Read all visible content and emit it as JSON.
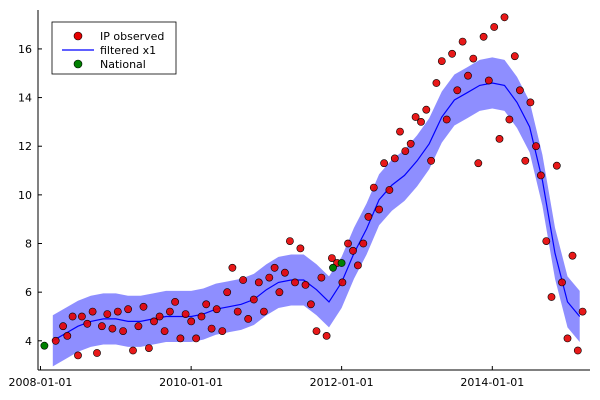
{
  "chart_data": {
    "type": "scatter",
    "title": "",
    "xlabel": "",
    "ylabel": "",
    "xlim": [
      "2007-12-20",
      "2015-04-20"
    ],
    "ylim": [
      2.8,
      17.6
    ],
    "grid": false,
    "legend": {
      "placement": "top-left",
      "entries": [
        {
          "label": "IP observed",
          "marker": "circle",
          "color": "#e60000"
        },
        {
          "label": "filtered x1",
          "marker": "line",
          "color": "#0000ff"
        },
        {
          "label": "National",
          "marker": "circle",
          "color": "#008000"
        }
      ]
    },
    "x_ticks": [
      {
        "value": "2008-01-01",
        "label": "2008-01-01"
      },
      {
        "value": "2010-01-01",
        "label": "2010-01-01"
      },
      {
        "value": "2012-01-01",
        "label": "2012-01-01"
      },
      {
        "value": "2014-01-01",
        "label": "2014-01-01"
      }
    ],
    "y_ticks": [
      4,
      6,
      8,
      10,
      12,
      14,
      16
    ],
    "series": [
      {
        "name": "filtered x1",
        "type": "line",
        "color": "#0000ff",
        "band_color": "#7a7aff",
        "band_half_width": 1.05,
        "x": [
          "2008-03-01",
          "2008-05-01",
          "2008-07-01",
          "2008-09-01",
          "2008-11-01",
          "2009-01-01",
          "2009-03-01",
          "2009-05-01",
          "2009-07-01",
          "2009-09-01",
          "2009-11-01",
          "2010-01-01",
          "2010-03-01",
          "2010-05-01",
          "2010-07-01",
          "2010-09-01",
          "2010-11-01",
          "2011-01-01",
          "2011-03-01",
          "2011-05-01",
          "2011-07-01",
          "2011-09-01",
          "2011-11-01",
          "2012-01-01",
          "2012-03-01",
          "2012-05-01",
          "2012-07-01",
          "2012-09-01",
          "2012-11-01",
          "2013-01-01",
          "2013-03-01",
          "2013-05-01",
          "2013-07-01",
          "2013-09-01",
          "2013-11-01",
          "2014-01-01",
          "2014-03-01",
          "2014-05-01",
          "2014-07-01",
          "2014-09-01",
          "2014-11-01",
          "2015-01-01",
          "2015-03-01"
        ],
        "values": [
          4.0,
          4.3,
          4.6,
          4.8,
          4.9,
          4.9,
          4.8,
          4.8,
          4.9,
          5.0,
          5.0,
          5.0,
          5.1,
          5.3,
          5.4,
          5.5,
          5.7,
          6.1,
          6.4,
          6.5,
          6.5,
          6.1,
          5.6,
          6.4,
          7.6,
          8.6,
          9.8,
          10.4,
          10.8,
          11.4,
          12.1,
          13.2,
          13.9,
          14.2,
          14.5,
          14.6,
          14.5,
          13.8,
          12.8,
          10.6,
          7.6,
          5.6,
          5.0
        ]
      },
      {
        "name": "IP observed",
        "type": "scatter",
        "color": "#e60000",
        "x": [
          "2008-03-15",
          "2008-04-20",
          "2008-05-10",
          "2008-06-05",
          "2008-07-01",
          "2008-07-20",
          "2008-08-15",
          "2008-09-10",
          "2008-10-01",
          "2008-10-25",
          "2008-11-20",
          "2008-12-15",
          "2009-01-10",
          "2009-02-05",
          "2009-03-01",
          "2009-03-25",
          "2009-04-20",
          "2009-05-15",
          "2009-06-10",
          "2009-07-05",
          "2009-08-01",
          "2009-08-25",
          "2009-09-20",
          "2009-10-15",
          "2009-11-10",
          "2009-12-05",
          "2010-01-01",
          "2010-01-25",
          "2010-02-20",
          "2010-03-15",
          "2010-04-10",
          "2010-05-05",
          "2010-06-01",
          "2010-06-25",
          "2010-07-20",
          "2010-08-15",
          "2010-09-10",
          "2010-10-05",
          "2010-11-01",
          "2010-11-25",
          "2010-12-20",
          "2011-01-15",
          "2011-02-10",
          "2011-03-05",
          "2011-04-01",
          "2011-04-25",
          "2011-05-20",
          "2011-06-15",
          "2011-07-10",
          "2011-08-05",
          "2011-09-01",
          "2011-09-25",
          "2011-10-20",
          "2011-11-15",
          "2011-12-10",
          "2012-01-05",
          "2012-02-01",
          "2012-02-25",
          "2012-03-20",
          "2012-04-15",
          "2012-05-10",
          "2012-06-05",
          "2012-07-01",
          "2012-07-25",
          "2012-08-20",
          "2012-09-15",
          "2012-10-10",
          "2012-11-05",
          "2012-12-01",
          "2012-12-25",
          "2013-01-20",
          "2013-02-15",
          "2013-03-10",
          "2013-04-05",
          "2013-05-01",
          "2013-05-25",
          "2013-06-20",
          "2013-07-15",
          "2013-08-10",
          "2013-09-05",
          "2013-10-01",
          "2013-10-25",
          "2013-11-20",
          "2013-12-15",
          "2014-01-10",
          "2014-02-05",
          "2014-03-01",
          "2014-03-25",
          "2014-04-20",
          "2014-05-15",
          "2014-06-10",
          "2014-07-05",
          "2014-08-01",
          "2014-08-25",
          "2014-09-20",
          "2014-10-15",
          "2014-11-10",
          "2014-12-05",
          "2015-01-01",
          "2015-01-25",
          "2015-02-20",
          "2015-03-15"
        ],
        "values": [
          4.0,
          4.6,
          4.2,
          5.0,
          3.4,
          5.0,
          4.7,
          5.2,
          3.5,
          4.6,
          5.1,
          4.5,
          5.2,
          4.4,
          5.3,
          3.6,
          4.6,
          5.4,
          3.7,
          4.8,
          5.0,
          4.4,
          5.2,
          5.6,
          4.1,
          5.1,
          4.8,
          4.1,
          5.0,
          5.5,
          4.5,
          5.3,
          4.4,
          6.0,
          7.0,
          5.2,
          6.5,
          4.9,
          5.7,
          6.4,
          5.2,
          6.6,
          7.0,
          6.0,
          6.8,
          8.1,
          6.4,
          7.8,
          6.3,
          5.5,
          4.4,
          6.6,
          4.2,
          7.4,
          7.2,
          6.4,
          8.0,
          7.7,
          7.1,
          8.0,
          9.1,
          10.3,
          9.4,
          11.3,
          10.2,
          11.5,
          12.6,
          11.8,
          12.1,
          13.2,
          13.0,
          13.5,
          11.4,
          14.6,
          15.5,
          13.1,
          15.8,
          14.3,
          16.3,
          14.9,
          15.6,
          11.3,
          16.5,
          14.7,
          16.9,
          12.3,
          17.3,
          13.1,
          15.7,
          14.3,
          11.4,
          13.8,
          12.0,
          10.8,
          8.1,
          5.8,
          11.2,
          6.4,
          4.1,
          7.5,
          3.6,
          5.2
        ]
      },
      {
        "name": "National",
        "type": "scatter",
        "color": "#008000",
        "x": [
          "2008-01-20",
          "2011-11-20",
          "2012-01-01"
        ],
        "values": [
          3.8,
          7.0,
          7.2
        ]
      }
    ]
  }
}
